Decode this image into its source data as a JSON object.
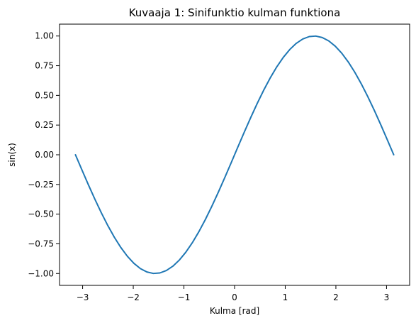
{
  "chart_data": {
    "type": "line",
    "title": "Kuvaaja 1: Sinifunktio kulman funktiona",
    "xlabel": "Kulma [rad]",
    "ylabel": "sin(x)",
    "xlim": [
      -3.4557519189487724,
      3.4557519189487724
    ],
    "ylim": [
      -1.1,
      1.1
    ],
    "x_ticks": [
      -3,
      -2,
      -1,
      0,
      1,
      2,
      3
    ],
    "y_ticks": [
      -1.0,
      -0.75,
      -0.5,
      -0.25,
      0.0,
      0.25,
      0.5,
      0.75,
      1.0
    ],
    "x_tick_labels": [
      "−3",
      "−2",
      "−1",
      "0",
      "1",
      "2",
      "3"
    ],
    "y_tick_labels": [
      "−1.00",
      "−0.75",
      "−0.50",
      "−0.25",
      "0.00",
      "0.25",
      "0.50",
      "0.75",
      "1.00"
    ],
    "series": [
      {
        "color": "#1f77b4",
        "x": [
          -3.141592653589793,
          -3.0133643820146,
          -2.8851361104394067,
          -2.7569078388642136,
          -2.62867956728902,
          -2.500451295713827,
          -2.372223024138634,
          -2.243994752563441,
          -2.1157664809882477,
          -1.9875382094130545,
          -1.8593099378378612,
          -1.731081666262668,
          -1.602853394687475,
          -1.4746251231122818,
          -1.3463968515370885,
          -1.2181685799618953,
          -1.0899403083867023,
          -0.961712036811509,
          -0.8334837652363158,
          -0.7052554936611226,
          -0.5770272220859294,
          -0.4487989505107362,
          -0.320570678935543,
          -0.1923424073603498,
          -0.0641141357851566,
          0.0641141357851566,
          0.1923424073603498,
          0.320570678935543,
          0.4487989505107362,
          0.5770272220859294,
          0.7052554936611226,
          0.8334837652363158,
          0.961712036811509,
          1.0899403083867023,
          1.2181685799618953,
          1.3463968515370885,
          1.4746251231122818,
          1.602853394687475,
          1.731081666262668,
          1.8593099378378612,
          1.9875382094130545,
          2.1157664809882477,
          2.243994752563441,
          2.372223024138634,
          2.500451295713827,
          2.62867956728902,
          2.7569078388642136,
          2.8851361104394067,
          3.0133643820146,
          3.141592653589793
        ],
        "y": [
          -0.0,
          -0.1278771616845,
          -0.2536545839095,
          -0.37526700487937,
          -0.49071755200393,
          -0.59811053049121,
          -0.69568255060348,
          -0.78183148246803,
          -0.85514276300534,
          -0.91441262301996,
          -0.95866785303666,
          -0.98718178341445,
          -0.99948621620069,
          -0.99537911294067,
          -0.97492791218182,
          -0.93846842204976,
          -0.88659931273433,
          -0.82017225459554,
          -0.74027799707531,
          -0.64822839530778,
          -0.54553490121054,
          -0.43388373911756,
          -0.31510821802362,
          -0.19115862870137,
          -0.06407021998071,
          0.06407021998071,
          0.19115862870137,
          0.31510821802362,
          0.43388373911756,
          0.54553490121054,
          0.64822839530778,
          0.74027799707531,
          0.82017225459554,
          0.88659931273433,
          0.93846842204976,
          0.97492791218182,
          0.99537911294067,
          0.99948621620069,
          0.98718178341445,
          0.95866785303666,
          0.91441262301996,
          0.85514276300534,
          0.78183148246803,
          0.69568255060348,
          0.59811053049121,
          0.49071755200393,
          0.37526700487937,
          0.2536545839095,
          0.1278771616845,
          0.0
        ]
      }
    ],
    "grid": false,
    "legend": "none"
  }
}
